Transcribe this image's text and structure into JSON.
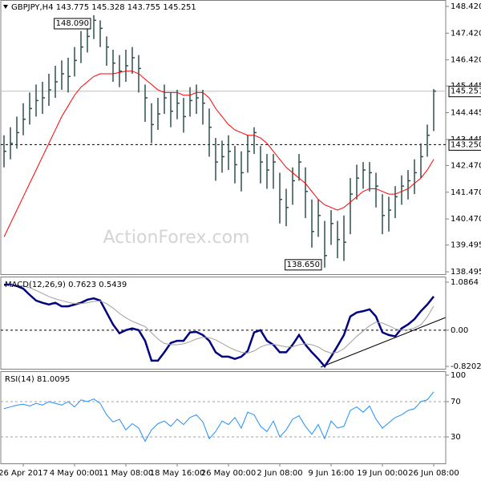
{
  "chart_data": [
    {
      "type": "ohlc",
      "title": "GBPJPY,H4  143.775 145.328 143.755 145.251",
      "watermark": "ActionForex.com",
      "categories": [
        null,
        null,
        null,
        "26 Apr 2017",
        null,
        null,
        null,
        null,
        null,
        null,
        null,
        "4 May 00:00",
        null,
        null,
        null,
        null,
        null,
        null,
        null,
        "11 May 08:00",
        null,
        null,
        null,
        null,
        null,
        null,
        null,
        "18 May 16:00",
        null,
        null,
        null,
        null,
        null,
        null,
        null,
        "26 May 00:00",
        null,
        null,
        null,
        null,
        null,
        null,
        null,
        "2 Jun 08:00",
        null,
        null,
        null,
        null,
        null,
        null,
        null,
        "9 Jun 16:00",
        null,
        null,
        null,
        null,
        null,
        null,
        null,
        "19 Jun 00:00",
        null,
        null,
        null,
        null,
        null,
        null,
        null,
        "26 Jun 08:00"
      ],
      "color": "#2f4f4f",
      "high": [
        143.6,
        143.9,
        144.3,
        144.8,
        145.2,
        145.5,
        145.6,
        145.9,
        146.2,
        146.4,
        146.5,
        146.9,
        147.5,
        147.9,
        148.09,
        147.9,
        147.3,
        146.8,
        146.6,
        146.8,
        146.9,
        146.6,
        145.5,
        144.8,
        145.0,
        145.5,
        145.2,
        145.3,
        145.0,
        145.4,
        145.5,
        145.3,
        144.6,
        143.5,
        143.4,
        143.6,
        143.2,
        143.0,
        143.6,
        143.9,
        143.2,
        142.9,
        142.9,
        142.2,
        141.6,
        142.4,
        142.9,
        142.4,
        141.2,
        141.2,
        140.4,
        140.8,
        140.4,
        140.6,
        142.0,
        142.5,
        142.6,
        142.6,
        142.2,
        141.4,
        141.3,
        141.7,
        142.1,
        142.3,
        142.7,
        143.3,
        144.0,
        145.328
      ],
      "low": [
        142.4,
        142.7,
        143.1,
        143.6,
        144.0,
        144.3,
        144.4,
        144.7,
        145.0,
        145.3,
        145.2,
        145.8,
        146.3,
        146.7,
        147.2,
        146.9,
        146.2,
        145.6,
        145.4,
        145.6,
        145.9,
        145.2,
        144.1,
        143.3,
        143.8,
        144.4,
        143.9,
        144.2,
        143.7,
        144.3,
        144.4,
        144.0,
        142.8,
        141.9,
        142.2,
        142.3,
        141.8,
        141.5,
        142.2,
        142.9,
        141.8,
        141.6,
        141.6,
        140.3,
        140.2,
        141.0,
        141.9,
        140.5,
        139.4,
        139.8,
        138.65,
        139.5,
        139.0,
        138.9,
        139.9,
        141.2,
        141.6,
        141.5,
        140.9,
        139.9,
        140.0,
        140.5,
        141.0,
        141.2,
        141.4,
        142.0,
        142.8,
        143.755
      ],
      "close": [
        143.0,
        143.3,
        143.7,
        144.2,
        144.6,
        144.9,
        145.0,
        145.3,
        145.6,
        145.9,
        145.8,
        146.4,
        146.9,
        147.3,
        147.9,
        147.6,
        146.9,
        146.3,
        146.0,
        146.2,
        146.5,
        146.1,
        145.0,
        144.0,
        144.4,
        145.0,
        144.5,
        144.8,
        144.3,
        144.9,
        145.0,
        144.8,
        143.9,
        142.6,
        142.8,
        143.0,
        142.5,
        142.2,
        143.0,
        143.7,
        142.6,
        142.3,
        142.6,
        141.2,
        140.9,
        141.9,
        142.6,
        141.5,
        140.0,
        140.6,
        139.1,
        140.3,
        139.7,
        139.6,
        141.4,
        142.0,
        142.3,
        142.2,
        141.7,
        140.6,
        140.8,
        141.3,
        141.7,
        141.9,
        142.2,
        142.8,
        143.6,
        145.251
      ],
      "ma": {
        "color": "#ff0000",
        "values": [
          139.8,
          140.3,
          140.8,
          141.3,
          141.8,
          142.3,
          142.8,
          143.3,
          143.8,
          144.3,
          144.7,
          145.1,
          145.4,
          145.6,
          145.8,
          145.9,
          145.9,
          145.9,
          145.95,
          146.0,
          146.0,
          145.9,
          145.7,
          145.5,
          145.3,
          145.2,
          145.2,
          145.2,
          145.1,
          145.1,
          145.2,
          145.2,
          145.0,
          144.6,
          144.3,
          144.0,
          143.8,
          143.7,
          143.6,
          143.6,
          143.5,
          143.3,
          143.0,
          142.7,
          142.4,
          142.2,
          142.0,
          141.8,
          141.5,
          141.2,
          141.0,
          140.9,
          140.8,
          140.9,
          141.1,
          141.3,
          141.5,
          141.6,
          141.6,
          141.5,
          141.4,
          141.4,
          141.5,
          141.6,
          141.8,
          142.0,
          142.3,
          142.7
        ]
      },
      "ylim": [
        138.405,
        148.66
      ],
      "yticks": [
        {
          "value": 148.42,
          "label": "148.420"
        },
        {
          "value": 147.42,
          "label": "147.420"
        },
        {
          "value": 146.42,
          "label": "146.420"
        },
        145.445,
        144.445,
        143.445,
        {
          "value": 142.47,
          "label": "142.470"
        },
        {
          "value": 141.47,
          "label": "141.470"
        },
        {
          "value": 140.47,
          "label": "140.470"
        },
        139.495,
        138.495
      ],
      "levels": [
        {
          "value": 145.251,
          "color": "#c0c0c0",
          "dash": false
        },
        {
          "value": 143.25,
          "label": "143.250",
          "color": "#000000",
          "dash": true
        }
      ],
      "level_boxes": true,
      "annotations": [
        {
          "value": 148.09,
          "label": "148.090"
        },
        {
          "value": 138.65,
          "label": "138.650"
        }
      ]
    },
    {
      "type": "macd",
      "title": "MACD(12,26,9) 0.7623 0.5439",
      "series": [
        {
          "color": "#000080",
          "width": 2.5,
          "values": [
            1.03,
            1.03,
            1.0,
            0.94,
            0.8,
            0.67,
            0.62,
            0.58,
            0.62,
            0.54,
            0.54,
            0.58,
            0.62,
            0.69,
            0.72,
            0.67,
            0.4,
            0.13,
            -0.07,
            0,
            0.04,
            0,
            -0.24,
            -0.69,
            -0.69,
            -0.5,
            -0.29,
            -0.24,
            -0.24,
            -0.05,
            -0.04,
            -0.11,
            -0.24,
            -0.5,
            -0.6,
            -0.6,
            -0.65,
            -0.6,
            -0.47,
            -0.05,
            0,
            -0.24,
            -0.33,
            -0.5,
            -0.5,
            -0.33,
            -0.11,
            -0.33,
            -0.5,
            -0.65,
            -0.82,
            -0.6,
            -0.36,
            -0.11,
            0.31,
            0.4,
            0.43,
            0.47,
            0.31,
            -0.05,
            -0.11,
            -0.14,
            0.04,
            0.13,
            0.25,
            0.43,
            0.58,
            0.7623
          ]
        },
        {
          "color": "#a0a0a0",
          "width": 1,
          "values": [
            1.0,
            1.02,
            1.02,
            1.0,
            0.96,
            0.9,
            0.83,
            0.76,
            0.71,
            0.67,
            0.63,
            0.6,
            0.6,
            0.62,
            0.65,
            0.66,
            0.6,
            0.5,
            0.38,
            0.28,
            0.2,
            0.14,
            0.08,
            -0.06,
            -0.2,
            -0.3,
            -0.33,
            -0.33,
            -0.31,
            -0.26,
            -0.2,
            -0.16,
            -0.17,
            -0.22,
            -0.3,
            -0.38,
            -0.45,
            -0.5,
            -0.52,
            -0.47,
            -0.38,
            -0.33,
            -0.32,
            -0.35,
            -0.38,
            -0.38,
            -0.33,
            -0.31,
            -0.33,
            -0.38,
            -0.47,
            -0.52,
            -0.5,
            -0.42,
            -0.28,
            -0.14,
            -0.02,
            0.1,
            0.18,
            0.16,
            0.1,
            0.03,
            0,
            0.01,
            0.05,
            0.12,
            0.3,
            0.5439
          ]
        }
      ],
      "ylim": [
        -0.874,
        1.213
      ],
      "yticks": [
        1.0864,
        {
          "value": 0,
          "label": "0.00"
        },
        -0.8202
      ],
      "levels": [
        {
          "value": 0,
          "color": "#000000",
          "dash": true
        }
      ]
    },
    {
      "type": "rsi",
      "title": "RSI(14) 81.0095",
      "series": [
        {
          "color": "#1e90ff",
          "width": 1,
          "values": [
            62,
            64,
            66,
            67,
            65,
            68,
            66,
            70,
            68,
            66,
            70,
            64,
            72,
            70,
            73,
            68,
            55,
            47,
            50,
            38,
            45,
            40,
            25,
            38,
            45,
            48,
            42,
            50,
            44,
            52,
            55,
            47,
            28,
            36,
            48,
            44,
            52,
            40,
            58,
            55,
            42,
            36,
            48,
            30,
            38,
            50,
            54,
            42,
            33,
            44,
            28,
            48,
            40,
            42,
            60,
            64,
            58,
            65,
            50,
            40,
            46,
            52,
            55,
            60,
            62,
            70,
            72,
            81.0095
          ]
        }
      ],
      "ylim": [
        0,
        104.5
      ],
      "yticks": [
        100,
        70,
        30
      ],
      "levels": [
        {
          "value": 70,
          "color": "#a0a0a0",
          "dash": true
        },
        {
          "value": 30,
          "color": "#a0a0a0",
          "dash": true
        }
      ]
    }
  ]
}
